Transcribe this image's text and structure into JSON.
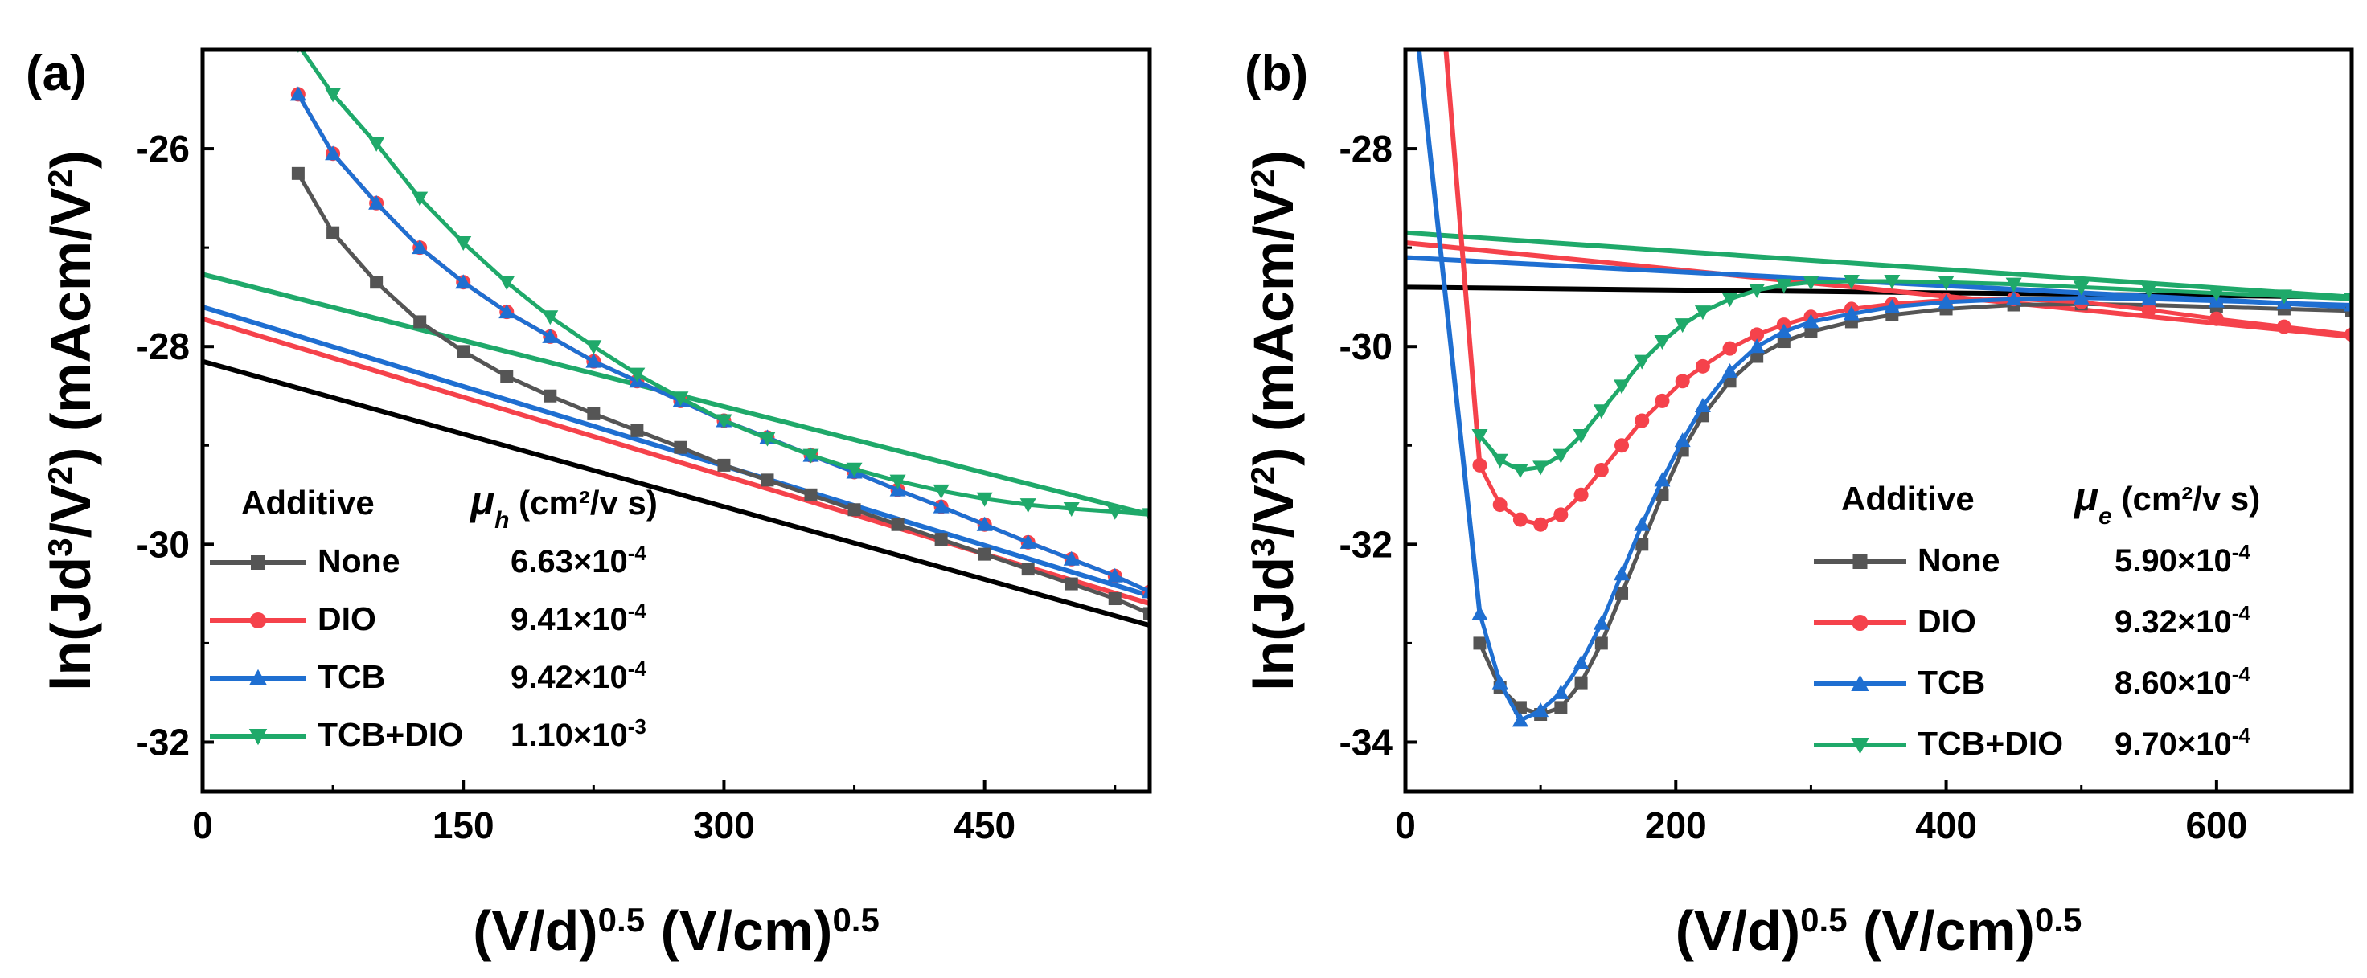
{
  "chart_data": [
    {
      "type": "scatter",
      "panel_label": "(a)",
      "xlabel": "(V/d)",
      "xlabel_sup1": "0.5",
      "xlabel_mid": " (V/cm)",
      "xlabel_sup2": "0.5",
      "ylabel_parts": [
        "ln(Jd",
        "3",
        "/V",
        "2",
        ") (mAcm/V",
        "2",
        ")"
      ],
      "xlim": [
        0,
        545
      ],
      "ylim": [
        -32.5,
        -25
      ],
      "xticks": [
        0,
        150,
        300,
        450
      ],
      "yticks": [
        -26,
        -28,
        -30,
        -32
      ],
      "legend": {
        "header_additive": "Additive",
        "header_mu": "μ",
        "header_mu_sub": "h",
        "header_units": "(cm²/v s)",
        "entries": [
          {
            "name": "None",
            "mantissa": "6.63×10",
            "exp": "-4",
            "color": "#555555",
            "marker": "square"
          },
          {
            "name": "DIO",
            "mantissa": "9.41×10",
            "exp": "-4",
            "color": "#f5424b",
            "marker": "circle"
          },
          {
            "name": "TCB",
            "mantissa": "9.42×10",
            "exp": "-4",
            "color": "#1f6fd1",
            "marker": "triangle-up"
          },
          {
            "name": "TCB+DIO",
            "mantissa": "1.10×10",
            "exp": "-3",
            "color": "#1fa96a",
            "marker": "triangle-down"
          }
        ]
      },
      "series": [
        {
          "name": "None",
          "color": "#555555",
          "marker": "square",
          "x": [
            55,
            75,
            100,
            125,
            150,
            175,
            200,
            225,
            250,
            275,
            300,
            325,
            350,
            375,
            400,
            425,
            450,
            475,
            500,
            525,
            545
          ],
          "y": [
            -26.25,
            -26.85,
            -27.35,
            -27.75,
            -28.05,
            -28.3,
            -28.5,
            -28.68,
            -28.85,
            -29.02,
            -29.2,
            -29.35,
            -29.5,
            -29.65,
            -29.8,
            -29.95,
            -30.1,
            -30.25,
            -30.4,
            -30.55,
            -30.7
          ]
        },
        {
          "name": "DIO",
          "color": "#f5424b",
          "marker": "circle",
          "x": [
            55,
            75,
            100,
            125,
            150,
            175,
            200,
            225,
            250,
            275,
            300,
            325,
            350,
            375,
            400,
            425,
            450,
            475,
            500,
            525,
            545
          ],
          "y": [
            -25.45,
            -26.05,
            -26.55,
            -27.0,
            -27.35,
            -27.65,
            -27.9,
            -28.15,
            -28.35,
            -28.55,
            -28.75,
            -28.92,
            -29.1,
            -29.27,
            -29.45,
            -29.62,
            -29.8,
            -29.98,
            -30.15,
            -30.32,
            -30.48
          ]
        },
        {
          "name": "TCB",
          "color": "#1f6fd1",
          "marker": "triangle-up",
          "x": [
            55,
            75,
            100,
            125,
            150,
            175,
            200,
            225,
            250,
            275,
            300,
            325,
            350,
            375,
            400,
            425,
            450,
            475,
            500,
            525,
            545
          ],
          "y": [
            -25.45,
            -26.05,
            -26.55,
            -27.0,
            -27.35,
            -27.65,
            -27.9,
            -28.15,
            -28.35,
            -28.55,
            -28.75,
            -28.92,
            -29.1,
            -29.27,
            -29.45,
            -29.62,
            -29.8,
            -29.98,
            -30.15,
            -30.32,
            -30.48
          ]
        },
        {
          "name": "TCB+DIO",
          "color": "#1fa96a",
          "marker": "triangle-down",
          "x": [
            55,
            75,
            100,
            125,
            150,
            175,
            200,
            225,
            250,
            275,
            300,
            325,
            350,
            375,
            400,
            425,
            450,
            475,
            500,
            525,
            545
          ],
          "y": [
            -24.95,
            -25.45,
            -25.95,
            -26.5,
            -26.95,
            -27.35,
            -27.7,
            -28.0,
            -28.28,
            -28.52,
            -28.75,
            -28.93,
            -29.1,
            -29.24,
            -29.36,
            -29.46,
            -29.54,
            -29.6,
            -29.64,
            -29.67,
            -29.7
          ]
        }
      ],
      "fits": [
        {
          "name": "None",
          "color": "#000000",
          "x": [
            0,
            545
          ],
          "y": [
            -28.15,
            -30.82
          ]
        },
        {
          "name": "DIO",
          "color": "#f5424b",
          "x": [
            0,
            545
          ],
          "y": [
            -27.72,
            -30.6
          ]
        },
        {
          "name": "TCB",
          "color": "#1f6fd1",
          "x": [
            0,
            545
          ],
          "y": [
            -27.6,
            -30.52
          ]
        },
        {
          "name": "TCB+DIO",
          "color": "#1fa96a",
          "x": [
            0,
            545
          ],
          "y": [
            -27.27,
            -29.7
          ]
        }
      ]
    },
    {
      "type": "scatter",
      "panel_label": "(b)",
      "xlabel": "(V/d)",
      "xlabel_sup1": "0.5",
      "xlabel_mid": " (V/cm)",
      "xlabel_sup2": "0.5",
      "ylabel_parts": [
        "ln(Jd",
        "3",
        "/V",
        "2",
        ") (mAcm/V",
        "2",
        ")"
      ],
      "xlim": [
        0,
        700
      ],
      "ylim": [
        -34.5,
        -27
      ],
      "xticks": [
        0,
        200,
        400,
        600
      ],
      "yticks": [
        -28,
        -30,
        -32,
        -34
      ],
      "legend": {
        "header_additive": "Additive",
        "header_mu": "μ",
        "header_mu_sub": "e",
        "header_units": "(cm²/v s)",
        "entries": [
          {
            "name": "None",
            "mantissa": "5.90×10",
            "exp": "-4",
            "color": "#555555",
            "marker": "square"
          },
          {
            "name": "DIO",
            "mantissa": "9.32×10",
            "exp": "-4",
            "color": "#f5424b",
            "marker": "circle"
          },
          {
            "name": "TCB",
            "mantissa": "8.60×10",
            "exp": "-4",
            "color": "#1f6fd1",
            "marker": "triangle-up"
          },
          {
            "name": "TCB+DIO",
            "mantissa": "9.70×10",
            "exp": "-4",
            "color": "#1fa96a",
            "marker": "triangle-down"
          }
        ]
      },
      "series": [
        {
          "name": "None",
          "color": "#555555",
          "marker": "square",
          "x": [
            55,
            70,
            85,
            100,
            115,
            130,
            145,
            160,
            175,
            190,
            205,
            220,
            240,
            260,
            280,
            300,
            330,
            360,
            400,
            450,
            500,
            550,
            600,
            650,
            700
          ],
          "y": [
            -33.0,
            -33.45,
            -33.65,
            -33.72,
            -33.65,
            -33.4,
            -33.0,
            -32.5,
            -32.0,
            -31.5,
            -31.05,
            -30.7,
            -30.35,
            -30.1,
            -29.95,
            -29.85,
            -29.75,
            -29.68,
            -29.62,
            -29.58,
            -29.57,
            -29.58,
            -29.6,
            -29.62,
            -29.64
          ]
        },
        {
          "name": "DIO",
          "color": "#f5424b",
          "marker": "circle",
          "x": [
            55,
            70,
            85,
            100,
            115,
            130,
            145,
            160,
            175,
            190,
            205,
            220,
            240,
            260,
            280,
            300,
            330,
            360,
            400,
            450,
            500,
            550,
            600,
            650,
            700
          ],
          "y": [
            -31.2,
            -31.6,
            -31.75,
            -31.8,
            -31.7,
            -31.5,
            -31.25,
            -31.0,
            -30.75,
            -30.55,
            -30.35,
            -30.2,
            -30.02,
            -29.88,
            -29.78,
            -29.7,
            -29.62,
            -29.57,
            -29.53,
            -29.52,
            -29.55,
            -29.63,
            -29.72,
            -29.8,
            -29.88
          ]
        },
        {
          "name": "TCB",
          "color": "#1f6fd1",
          "marker": "triangle-up",
          "x": [
            55,
            70,
            85,
            100,
            115,
            130,
            145,
            160,
            175,
            190,
            205,
            220,
            240,
            260,
            280,
            300,
            330,
            360,
            400,
            450,
            500,
            550,
            600,
            650,
            700
          ],
          "y": [
            -32.7,
            -33.4,
            -33.78,
            -33.68,
            -33.5,
            -33.2,
            -32.8,
            -32.3,
            -31.8,
            -31.35,
            -30.95,
            -30.6,
            -30.25,
            -30.0,
            -29.85,
            -29.75,
            -29.67,
            -29.6,
            -29.55,
            -29.52,
            -29.51,
            -29.52,
            -29.54,
            -29.56,
            -29.58
          ]
        },
        {
          "name": "TCB+DIO",
          "color": "#1fa96a",
          "marker": "triangle-down",
          "x": [
            55,
            70,
            85,
            100,
            115,
            130,
            145,
            160,
            175,
            190,
            205,
            220,
            240,
            260,
            280,
            300,
            330,
            360,
            400,
            450,
            500,
            550,
            600,
            650,
            700
          ],
          "y": [
            -30.9,
            -31.15,
            -31.25,
            -31.22,
            -31.1,
            -30.9,
            -30.65,
            -30.4,
            -30.15,
            -29.95,
            -29.78,
            -29.65,
            -29.52,
            -29.43,
            -29.38,
            -29.35,
            -29.34,
            -29.34,
            -29.35,
            -29.37,
            -29.4,
            -29.43,
            -29.46,
            -29.49,
            -29.52
          ]
        }
      ],
      "fits": [
        {
          "name": "None",
          "color": "#000000",
          "x": [
            0,
            700
          ],
          "y": [
            -29.4,
            -29.5
          ]
        },
        {
          "name": "DIO",
          "color": "#f5424b",
          "x": [
            0,
            700
          ],
          "y": [
            -28.95,
            -29.9
          ]
        },
        {
          "name": "TCB",
          "color": "#1f6fd1",
          "x": [
            0,
            700
          ],
          "y": [
            -29.1,
            -29.6
          ]
        },
        {
          "name": "TCB+DIO",
          "color": "#1fa96a",
          "x": [
            0,
            700
          ],
          "y": [
            -28.85,
            -29.5
          ]
        }
      ],
      "drops": [
        {
          "name": "DIO",
          "color": "#f5424b",
          "x": [
            30,
            55
          ],
          "y": [
            -27.0,
            -31.2
          ]
        },
        {
          "name": "TCB",
          "color": "#1f6fd1",
          "x": [
            10,
            55
          ],
          "y": [
            -27.0,
            -32.7
          ]
        }
      ]
    }
  ]
}
